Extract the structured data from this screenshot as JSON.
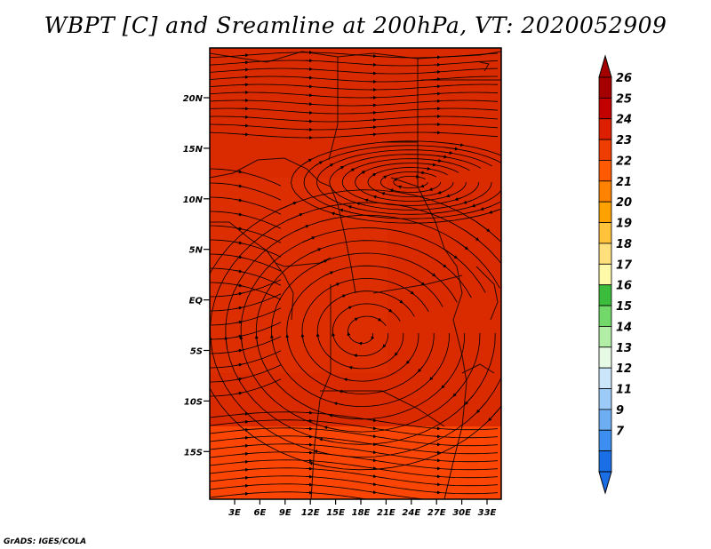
{
  "title": "WBPT [C] and Sreamline at 200hPa, VT: 2020052909",
  "credit": "GrADS: IGES/COLA",
  "map": {
    "lat_ticks": [
      "20N",
      "15N",
      "10N",
      "5N",
      "EQ",
      "5S",
      "10S",
      "15S"
    ],
    "lon_ticks": [
      "3E",
      "6E",
      "9E",
      "12E",
      "15E",
      "18E",
      "21E",
      "24E",
      "27E",
      "30E",
      "33E"
    ],
    "field_color": "#d92a00",
    "field_color_warm": "#e83d05",
    "field_color_cool_edge": "#ff4a06"
  },
  "colorbar": {
    "labels": [
      "26",
      "25",
      "24",
      "23",
      "22",
      "21",
      "20",
      "19",
      "18",
      "17",
      "16",
      "15",
      "14",
      "13",
      "12",
      "11",
      "9",
      "7"
    ],
    "colors": [
      "#a40000",
      "#c30000",
      "#dd1f00",
      "#ef3d00",
      "#ff5a00",
      "#ff8200",
      "#ffa200",
      "#ffc23b",
      "#ffe07d",
      "#fffaaa",
      "#3cbc3c",
      "#72d86a",
      "#b2eea6",
      "#e6fae6",
      "#cbe5fb",
      "#9ccbf7",
      "#6daef2",
      "#3c8ff0",
      "#1a6ee6"
    ],
    "top_arrow_color": "#a40000",
    "bottom_arrow_color": "#1a6ee6"
  }
}
